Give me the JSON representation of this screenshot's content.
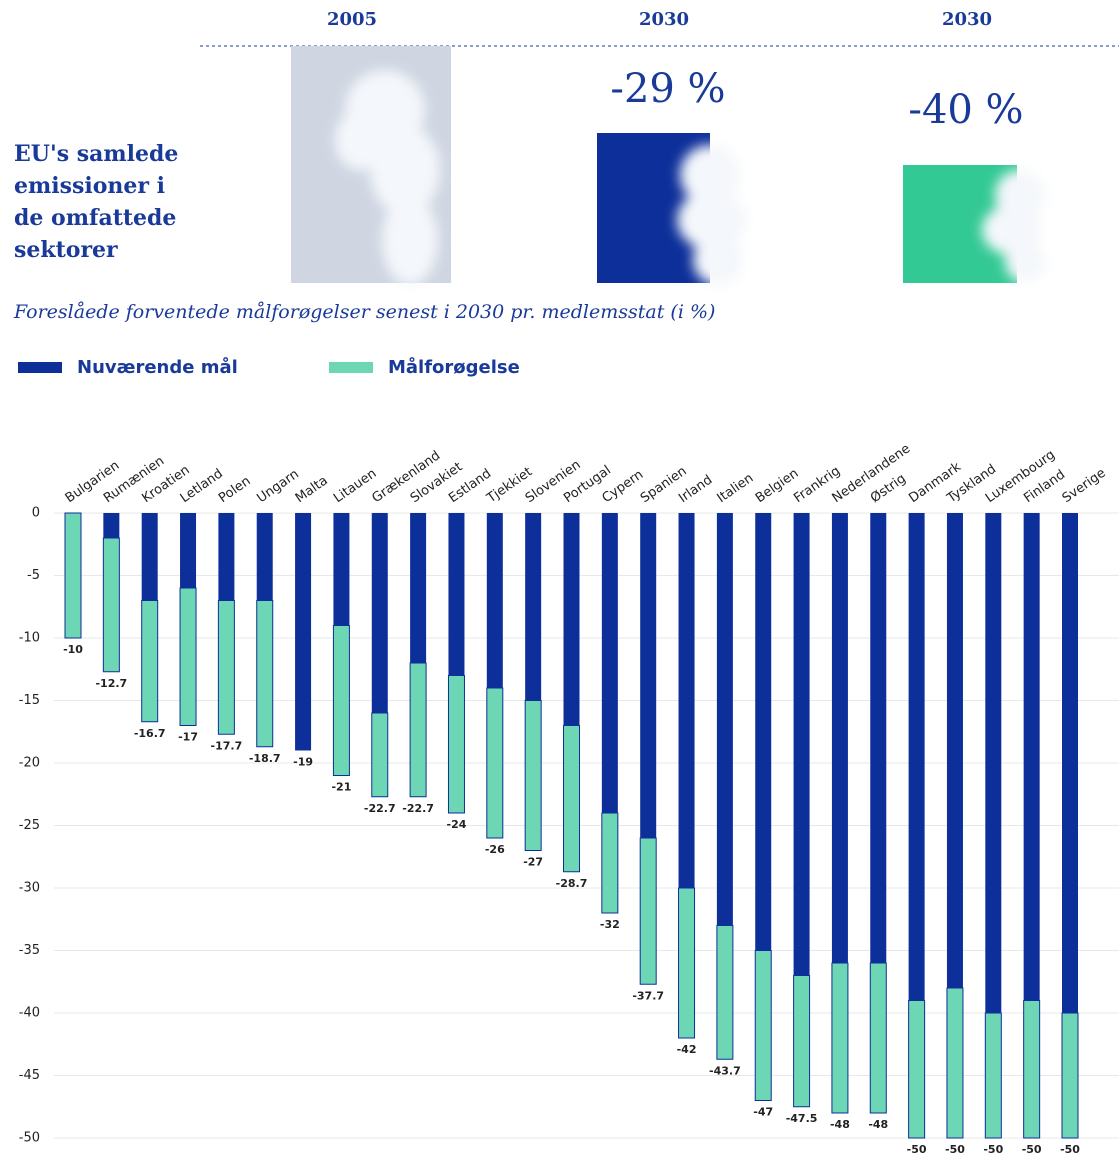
{
  "infographic": {
    "years": [
      "2005",
      "2030",
      "2030"
    ],
    "heading_lines": [
      "EU's samlede",
      "emissioner i",
      "de omfattede",
      "sektorer"
    ],
    "reductions": [
      "-29 %",
      "-40 %"
    ]
  },
  "chart_data": {
    "type": "stacked-bar",
    "title": "Foreslåede forventede målforøgelser senest i 2030 pr. medlemsstat (i %)",
    "categories": [
      "Bulgarien",
      "Rumænien",
      "Kroatien",
      "Letland",
      "Polen",
      "Ungarn",
      "Malta",
      "Litauen",
      "Grækenland",
      "Slovakiet",
      "Estland",
      "Tjekkiet",
      "Slovenien",
      "Portugal",
      "Cypern",
      "Spanien",
      "Irland",
      "Italien",
      "Belgien",
      "Frankrig",
      "Nederlandene",
      "Østrig",
      "Danmark",
      "Tyskland",
      "Luxembourg",
      "Finland",
      "Sverige"
    ],
    "series": [
      {
        "name": "Nuværende mål",
        "color": "#0d2f99",
        "values": [
          0,
          -2,
          -7,
          -6,
          -7,
          -7,
          -19,
          -9,
          -16,
          -12,
          -13,
          -14,
          -15,
          -17,
          -24,
          -26,
          -30,
          -33,
          -35,
          -37,
          -36,
          -36,
          -39,
          -38,
          -40,
          -39,
          -40
        ]
      },
      {
        "name": "Målforøgelse",
        "color": "#6dd6b4",
        "values": [
          -10,
          -10.7,
          -9.7,
          -11,
          -10.7,
          -11.7,
          0,
          -12,
          -6.7,
          -10.7,
          -11,
          -12,
          -12,
          -11.7,
          -8,
          -11.7,
          -12,
          -10.7,
          -12,
          -10.5,
          -12,
          -12,
          -11,
          -12,
          -10,
          -11,
          -10
        ]
      }
    ],
    "totals": [
      -10,
      -12.7,
      -16.7,
      -17,
      -17.7,
      -18.7,
      -19,
      -21,
      -22.7,
      -22.7,
      -24,
      -26,
      -27,
      -28.7,
      -32,
      -37.7,
      -42,
      -43.7,
      -47,
      -47.5,
      -48,
      -48,
      -50,
      -50,
      -50,
      -50,
      -50
    ],
    "ylim": [
      0,
      -50
    ],
    "yticks": [
      0,
      -5,
      -10,
      -15,
      -20,
      -25,
      -30,
      -35,
      -40,
      -45,
      -50
    ],
    "grid": true
  }
}
